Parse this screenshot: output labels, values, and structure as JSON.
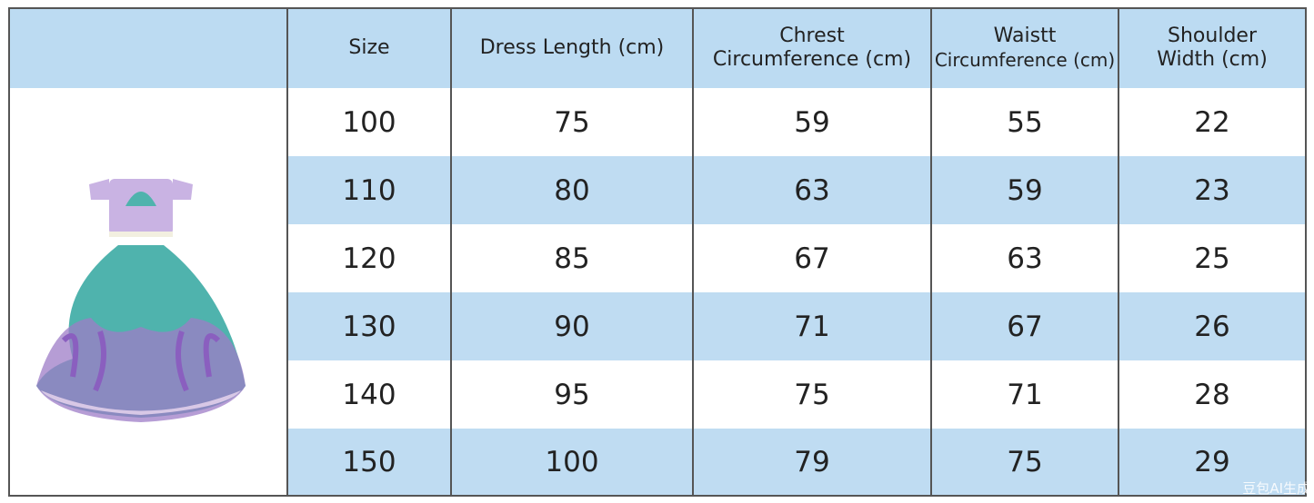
{
  "table": {
    "headers": [
      [
        "Size"
      ],
      [
        "Dress Length (cm)"
      ],
      [
        "Chrest",
        "Circumference (cm)"
      ],
      [
        "Waistt",
        "Circumference (cm)"
      ],
      [
        "Shoulder",
        "Width (cm)"
      ]
    ],
    "rows": [
      [
        100,
        75,
        59,
        55,
        22
      ],
      [
        110,
        80,
        63,
        59,
        23
      ],
      [
        120,
        85,
        67,
        63,
        25
      ],
      [
        130,
        90,
        71,
        67,
        26
      ],
      [
        140,
        95,
        75,
        71,
        28
      ],
      [
        150,
        100,
        79,
        75,
        29
      ]
    ]
  },
  "watermark": "豆包AI生成"
}
